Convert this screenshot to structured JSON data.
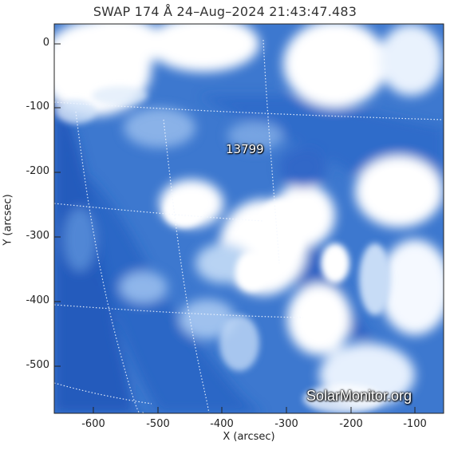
{
  "title": "SWAP 174 Å 24–Aug–2024 21:43:47.483",
  "axes": {
    "xlabel": "X (arcsec)",
    "ylabel": "Y (arcsec)",
    "x_ticks": [
      "-600",
      "-500",
      "-400",
      "-300",
      "-200",
      "-100"
    ],
    "y_ticks": [
      "0",
      "-100",
      "-200",
      "-300",
      "-400",
      "-500"
    ]
  },
  "active_region": "13799",
  "watermark": "SolarMonitor.org",
  "colors": {
    "deep_blue": "#1f55b8",
    "mid_blue": "#3f7fd3",
    "light_blue": "#b8d3f3",
    "white": "#ffffff"
  }
}
